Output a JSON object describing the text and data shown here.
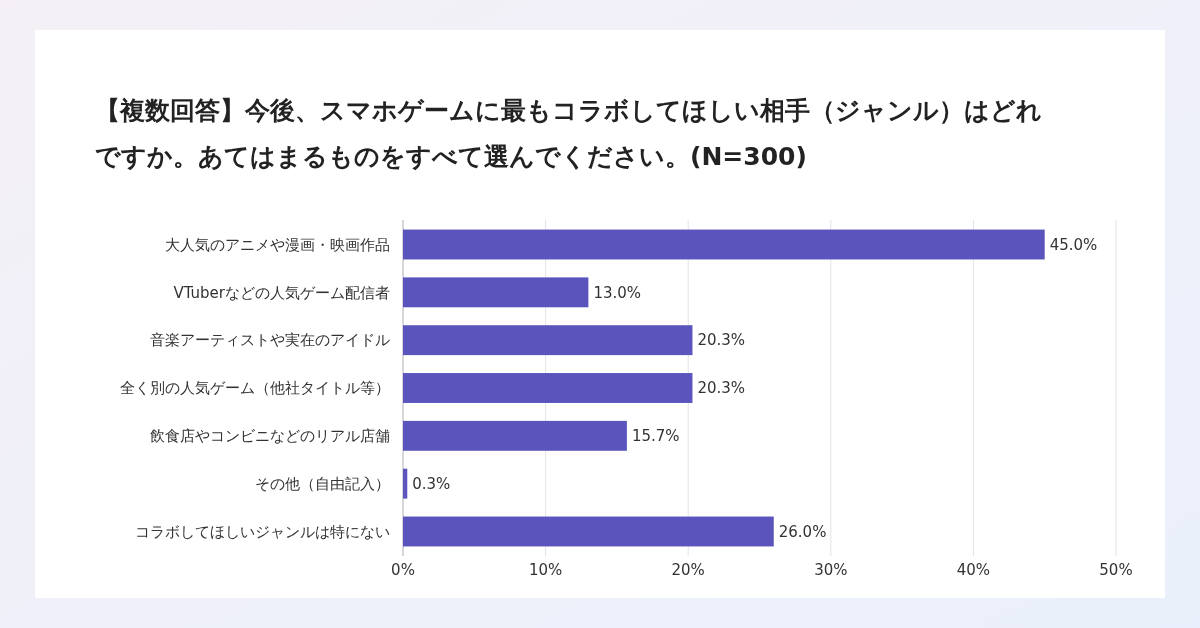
{
  "chart_data": {
    "type": "bar",
    "orientation": "horizontal",
    "title": "【複数回答】今後、スマホゲームに最もコラボしてほしい相手（ジャンル）はどれですか。あてはまるものをすべて選んでください。(N=300)",
    "categories": [
      "大人気のアニメや漫画・映画作品",
      "VTuberなどの人気ゲーム配信者",
      "音楽アーティストや実在のアイドル",
      "全く別の人気ゲーム（他社タイトル等）",
      "飲食店やコンビニなどのリアル店舗",
      "その他（自由記入）",
      "コラボしてほしいジャンルは特にない"
    ],
    "values": [
      45.0,
      13.0,
      20.3,
      20.3,
      15.7,
      0.3,
      26.0
    ],
    "value_labels": [
      "45.0%",
      "13.0%",
      "20.3%",
      "20.3%",
      "15.7%",
      "0.3%",
      "26.0%"
    ],
    "color": "#5b54bd",
    "xlim": [
      0,
      50
    ],
    "xticks": [
      {
        "value": 0,
        "label": "0%"
      },
      {
        "value": 10,
        "label": "10%"
      },
      {
        "value": 20,
        "label": "20%"
      },
      {
        "value": 30,
        "label": "30%"
      },
      {
        "value": 40,
        "label": "40%"
      },
      {
        "value": 50,
        "label": "50%"
      }
    ],
    "grid": "x"
  }
}
